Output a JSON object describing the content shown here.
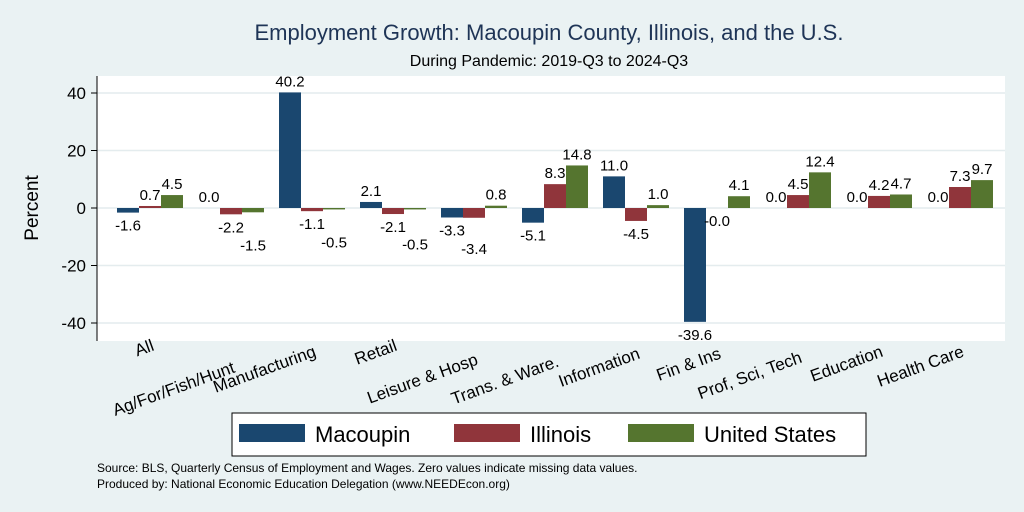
{
  "chart_data": {
    "type": "bar",
    "title": "Employment Growth: Macoupin County, Illinois, and the U.S.",
    "subtitle": "During Pandemic: 2019-Q3 to 2024-Q3",
    "xlabel": "",
    "ylabel": "Percent",
    "ylim": [
      -46,
      46
    ],
    "yticks": [
      40,
      20,
      0,
      -20,
      -40
    ],
    "ytick_labels": [
      "40",
      "20",
      "0",
      "-20",
      "-40"
    ],
    "grid": true,
    "legend_position": "bottom",
    "categories": [
      "All",
      "Ag/For/Fish/Hunt",
      "Manufacturing",
      "Retail",
      "Leisure & Hosp",
      "Trans. & Ware.",
      "Information",
      "Fin & Ins",
      "Prof, Sci, Tech",
      "Education",
      "Health Care"
    ],
    "series": [
      {
        "name": "Macoupin",
        "color": "#1a476f",
        "values": [
          -1.6,
          0.0,
          40.2,
          2.1,
          -3.3,
          -5.1,
          11.0,
          -39.6,
          0.0,
          0.0,
          0.0
        ],
        "labels": [
          "-1.6",
          "0.0",
          "40.2",
          "2.1",
          "-3.3",
          "-5.1",
          "11.0",
          "-39.6",
          "0.0",
          "0.0",
          "0.0"
        ]
      },
      {
        "name": "Illinois",
        "color": "#90353b",
        "values": [
          0.7,
          -2.2,
          -1.1,
          -2.1,
          -3.4,
          8.3,
          -4.5,
          -0.0,
          4.5,
          4.2,
          7.3
        ],
        "labels": [
          "0.7",
          "-2.2",
          "-1.1",
          "-2.1",
          "-3.4",
          "8.3",
          "-4.5",
          "-0.0",
          "4.5",
          "4.2",
          "7.3"
        ]
      },
      {
        "name": "United States",
        "color": "#55752f",
        "values": [
          4.5,
          -1.5,
          -0.5,
          -0.5,
          0.8,
          14.8,
          1.0,
          4.1,
          12.4,
          4.7,
          9.7
        ],
        "labels": [
          "4.5",
          "-1.5",
          "-0.5",
          "-0.5",
          "0.8",
          "14.8",
          "1.0",
          "4.1",
          "12.4",
          "4.7",
          "9.7"
        ]
      }
    ],
    "notes": [
      "Source: BLS, Quarterly Census of Employment and Wages. Zero values indicate missing data values.",
      "Produced by: National Economic Education Delegation (www.NEEDEcon.org)"
    ]
  }
}
